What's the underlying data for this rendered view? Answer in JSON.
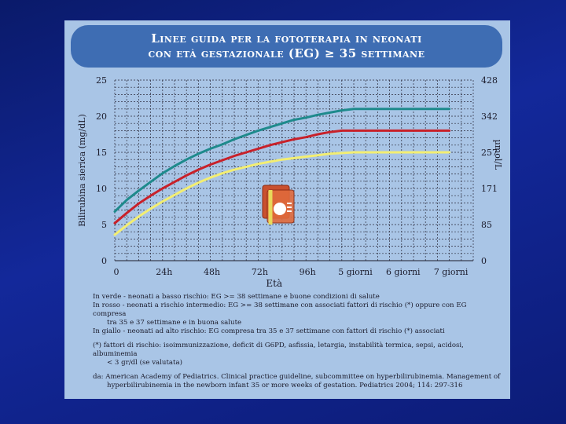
{
  "slide": {
    "title_line1": "Linee guida per la fototerapia in neonati",
    "title_line2": "con età gestazionale (EG) ≥ 35 settimane"
  },
  "chart_data": {
    "type": "line",
    "xlabel": "Età",
    "ylabel_left": "Bilirubina sierica (mg/dL)",
    "ylabel_right": "µmol/L",
    "categories": [
      "0",
      "24h",
      "48h",
      "72h",
      "96h",
      "5 giorni",
      "6 giorni",
      "7 giorni"
    ],
    "x_hours": [
      0,
      24,
      48,
      72,
      96,
      120,
      144,
      168
    ],
    "ylim": [
      0,
      25
    ],
    "yticks_left": [
      "0",
      "5",
      "10",
      "15",
      "20",
      "25"
    ],
    "yticks_right": [
      "0",
      "85",
      "171",
      "257",
      "342",
      "428"
    ],
    "grid": true,
    "series": [
      {
        "color": "#1e8a8c",
        "x": [
          0,
          6,
          12,
          18,
          24,
          30,
          36,
          42,
          48,
          54,
          60,
          66,
          72,
          78,
          84,
          90,
          96,
          102,
          108,
          114,
          120,
          132,
          144,
          156,
          168
        ],
        "y": [
          6.8,
          8.4,
          9.7,
          10.9,
          12.1,
          13.1,
          14.0,
          14.8,
          15.5,
          16.1,
          16.8,
          17.4,
          18.0,
          18.5,
          19.0,
          19.5,
          19.8,
          20.2,
          20.5,
          20.8,
          21.0,
          21.0,
          21.0,
          21.0,
          21.0
        ]
      },
      {
        "color": "#c8212a",
        "x": [
          0,
          6,
          12,
          18,
          24,
          30,
          36,
          42,
          48,
          54,
          60,
          66,
          72,
          78,
          84,
          90,
          96,
          102,
          108,
          114,
          120,
          132,
          144,
          156,
          168
        ],
        "y": [
          5.2,
          6.6,
          7.9,
          9.0,
          10.0,
          10.9,
          11.8,
          12.6,
          13.3,
          13.9,
          14.5,
          15.0,
          15.5,
          16.0,
          16.4,
          16.8,
          17.1,
          17.5,
          17.8,
          18.0,
          18.0,
          18.0,
          18.0,
          18.0,
          18.0
        ]
      },
      {
        "color": "#f3ee72",
        "x": [
          0,
          6,
          12,
          18,
          24,
          30,
          36,
          42,
          48,
          54,
          60,
          66,
          72,
          78,
          84,
          90,
          96,
          102,
          108,
          114,
          120,
          132,
          144,
          156,
          168
        ],
        "y": [
          3.6,
          4.9,
          6.1,
          7.2,
          8.2,
          9.1,
          10.0,
          10.8,
          11.5,
          12.1,
          12.6,
          13.0,
          13.4,
          13.7,
          14.0,
          14.2,
          14.4,
          14.6,
          14.8,
          14.9,
          15.0,
          15.0,
          15.0,
          15.0,
          15.0
        ]
      }
    ]
  },
  "notes": {
    "green": "In verde - neonati a basso rischio: EG >= 38 settimane e buone condizioni di salute",
    "red_1": "In rosso - neonati a rischio intermedio: EG >= 38 settimane con associati fattori di rischio (*) oppure con EG compresa",
    "red_2": "tra 35 e 37 settimane e in buona salute",
    "yellow": "In giallo - neonati ad alto rischio: EG compresa tra 35 e 37 settimane con fattori di rischio (*) associati",
    "risk_1": "(*) fattori di rischio: isoimmunizzazione, deficit di G6PD, asfissia, letargia, instabilità termica, sepsi, acidosi, albuminemia",
    "risk_2": "< 3 gr/dl (se valutata)",
    "source_1": "da: American Academy of Pediatrics. Clinical practice guideline, subcommittee on hyperbilirubinemia. Management of",
    "source_2": "hyperbilirubinemia in the newborn infant 35 or more weeks of gestation. Pediatrics 2004; 114: 297-316"
  },
  "icons": {
    "center_icon": "powerpoint-icon"
  }
}
